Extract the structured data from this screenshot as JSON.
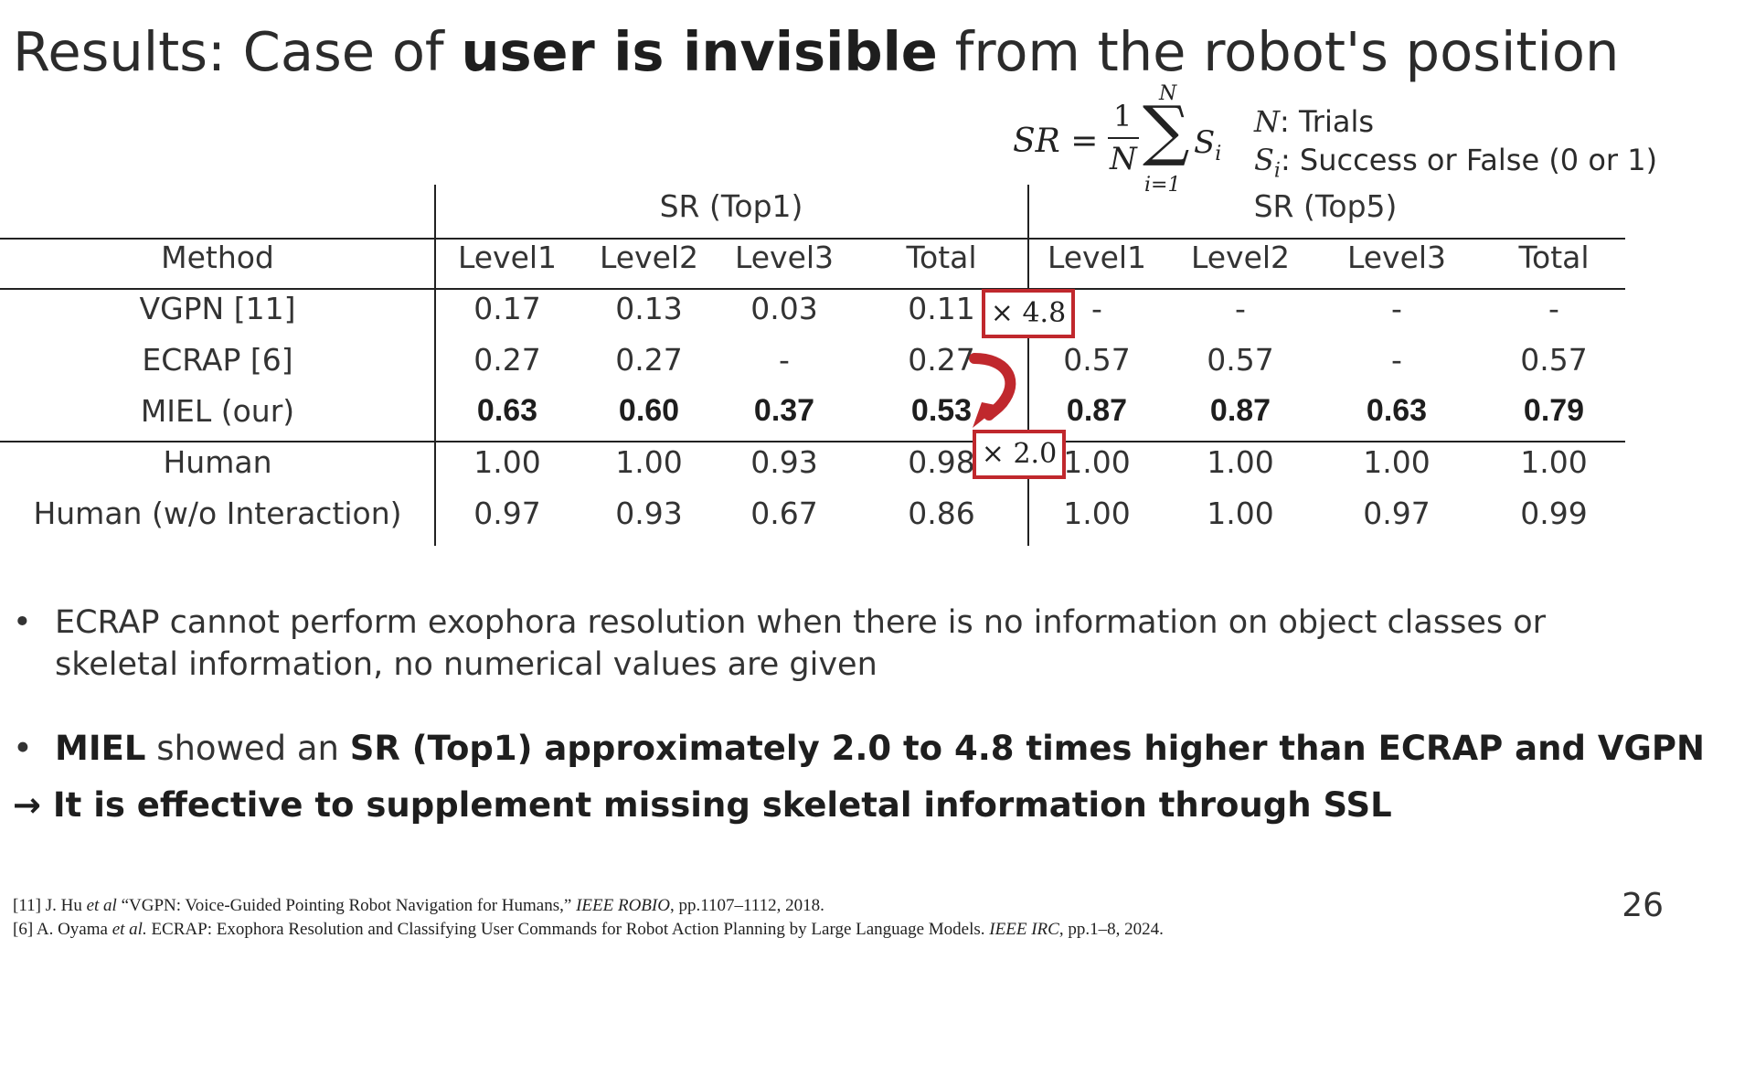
{
  "title": {
    "pre": "Results: Case of ",
    "bold": "user is invisible",
    "post": " from the robot's position"
  },
  "formula": {
    "lhs": "SR =",
    "numerator": "1",
    "denominator": "N",
    "sum_upper": "N",
    "sum_lower": "i=1",
    "term": "S",
    "term_sub": "i",
    "legend": [
      {
        "sym": "N",
        "text": ": Trials"
      },
      {
        "sym": "S",
        "sub": "i",
        "text": ": Success or False (0 or 1)"
      }
    ]
  },
  "table": {
    "group_headers": [
      "SR (Top1)",
      "SR (Top5)"
    ],
    "columns": [
      "Method",
      "Level1",
      "Level2",
      "Level3",
      "Total",
      "Level1",
      "Level2",
      "Level3",
      "Total"
    ],
    "rows": [
      {
        "method": "VGPN [11]",
        "values": [
          "0.17",
          "0.13",
          "0.03",
          "0.11",
          "-",
          "-",
          "-",
          "-"
        ],
        "bold": false
      },
      {
        "method": "ECRAP [6]",
        "values": [
          "0.27",
          "0.27",
          "-",
          "0.27",
          "0.57",
          "0.57",
          "-",
          "0.57"
        ],
        "bold": false
      },
      {
        "method": "MIEL (our)",
        "values": [
          "0.63",
          "0.60",
          "0.37",
          "0.53",
          "0.87",
          "0.87",
          "0.63",
          "0.79"
        ],
        "bold": true
      },
      {
        "method": "Human",
        "values": [
          "1.00",
          "1.00",
          "0.93",
          "0.98",
          "1.00",
          "1.00",
          "1.00",
          "1.00"
        ],
        "bold": false
      },
      {
        "method": "Human (w/o Interaction)",
        "values": [
          "0.97",
          "0.93",
          "0.67",
          "0.86",
          "1.00",
          "1.00",
          "0.97",
          "0.99"
        ],
        "bold": false
      }
    ],
    "annotations": [
      "× 4.8",
      "× 2.0"
    ],
    "accent_color": "#c0282d"
  },
  "bullets": {
    "b1": "ECRAP cannot perform exophora resolution when there is no information on object classes or skeletal information, no numerical values are given",
    "b2_bold1": "MIEL",
    "b2_mid": " showed an ",
    "b2_bold2": "SR (Top1) approximately 2.0 to 4.8 times higher than ECRAP and VGPN",
    "b3": "→ It is effective to supplement missing skeletal information through SSL",
    "dot": "•"
  },
  "refs": {
    "r1_a": "[11] J. Hu ",
    "r1_et": "et al",
    "r1_b": " “VGPN: Voice-Guided Pointing Robot Navigation for Humans,” ",
    "r1_j": "IEEE ROBIO",
    "r1_c": ", pp.1107–1112, 2018.",
    "r2_a": "[6] A. Oyama ",
    "r2_et": "et al.",
    "r2_b": " ECRAP: Exophora Resolution and Classifying User Commands for Robot Action Planning by Large Language Models. ",
    "r2_j": "IEEE IRC",
    "r2_c": ", pp.1–8, 2024."
  },
  "page_number": "26"
}
